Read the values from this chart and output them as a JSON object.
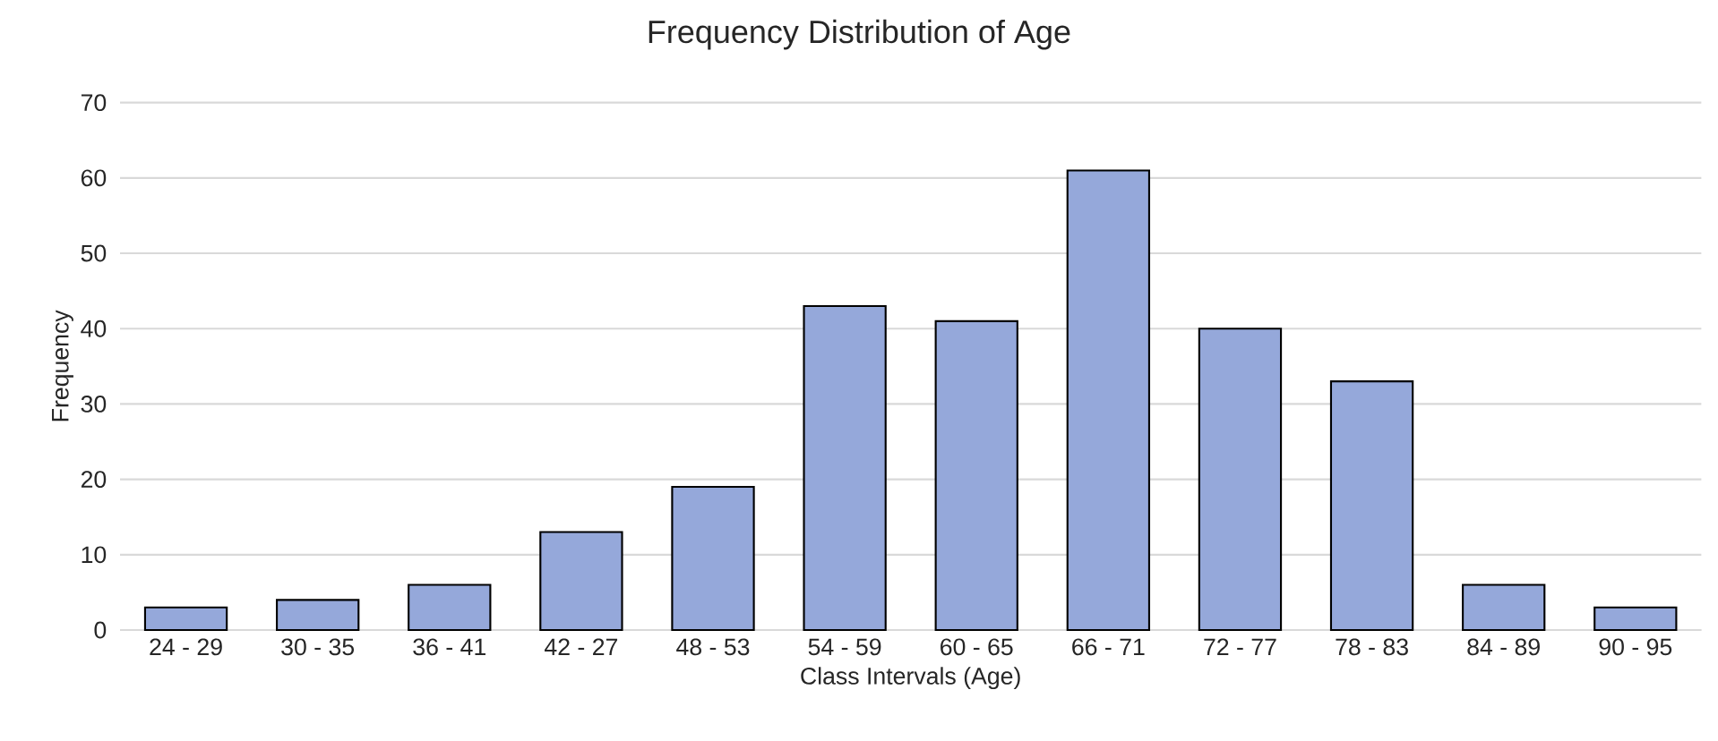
{
  "chart_data": {
    "type": "bar",
    "title": "Frequency Distribution of Age",
    "xlabel": "Class Intervals (Age)",
    "ylabel": "Frequency",
    "categories": [
      "24 - 29",
      "30 - 35",
      "36 - 41",
      "42 - 27",
      "48 - 53",
      "54 - 59",
      "60 - 65",
      "66 - 71",
      "72 - 77",
      "78 - 83",
      "84 - 89",
      "90 - 95"
    ],
    "values": [
      3,
      4,
      6,
      13,
      19,
      43,
      41,
      61,
      40,
      33,
      6,
      3
    ],
    "color": "#95a8da",
    "ylim": [
      0,
      70
    ],
    "yticks": [
      0,
      10,
      20,
      30,
      40,
      50,
      60,
      70
    ],
    "grid": "y"
  }
}
